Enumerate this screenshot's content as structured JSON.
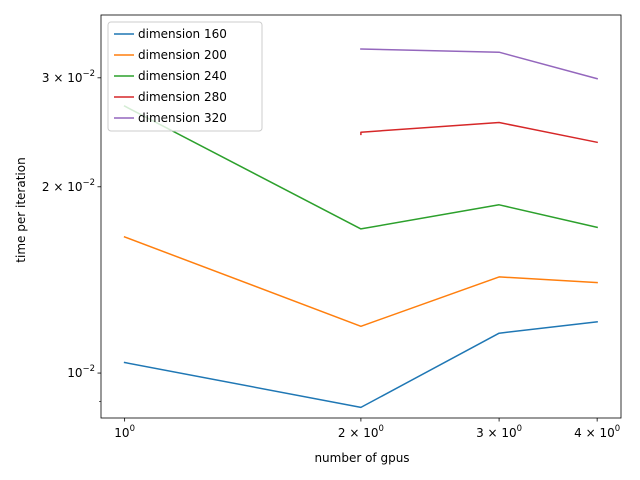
{
  "chart_data": {
    "type": "line",
    "xlabel": "number of gpus",
    "ylabel": "time per iteration",
    "xscale": "log",
    "yscale": "log",
    "xlim": [
      0.933,
      4.29
    ],
    "ylim": [
      0.00846,
      0.0379
    ],
    "grid": false,
    "legend_position": "top-left",
    "x_ticks": [
      {
        "value": 1,
        "base": "10",
        "exp": "0"
      },
      {
        "value": 2,
        "base": "2 × 10",
        "exp": "0"
      },
      {
        "value": 3,
        "base": "3 × 10",
        "exp": "0"
      },
      {
        "value": 4,
        "base": "4 × 10",
        "exp": "0"
      }
    ],
    "y_ticks": [
      {
        "value": 0.01,
        "base": "10",
        "exp": "−2"
      },
      {
        "value": 0.02,
        "base": "2 × 10",
        "exp": "−2"
      },
      {
        "value": 0.03,
        "base": "3 × 10",
        "exp": "−2"
      }
    ],
    "y_minor_ticks": [
      0.009
    ],
    "series": [
      {
        "name": "dimension 160",
        "color": "#1f77b4",
        "x": [
          1,
          2,
          3,
          4
        ],
        "y": [
          0.0104,
          0.0088,
          0.0116,
          0.0121
        ]
      },
      {
        "name": "dimension 200",
        "color": "#ff7f0e",
        "x": [
          1,
          2,
          3,
          4
        ],
        "y": [
          0.0166,
          0.0119,
          0.0143,
          0.014
        ]
      },
      {
        "name": "dimension 240",
        "color": "#2ca02c",
        "x": [
          1,
          2,
          3,
          4
        ],
        "y": [
          0.027,
          0.0171,
          0.0187,
          0.0172
        ]
      },
      {
        "name": "dimension 280",
        "color": "#d62728",
        "x": [
          2,
          2,
          3,
          4
        ],
        "y": [
          0.0243,
          0.0245,
          0.0254,
          0.0236
        ]
      },
      {
        "name": "dimension 320",
        "color": "#9467bd",
        "x": [
          2,
          3,
          4
        ],
        "y": [
          0.0334,
          0.033,
          0.0299
        ]
      }
    ]
  }
}
